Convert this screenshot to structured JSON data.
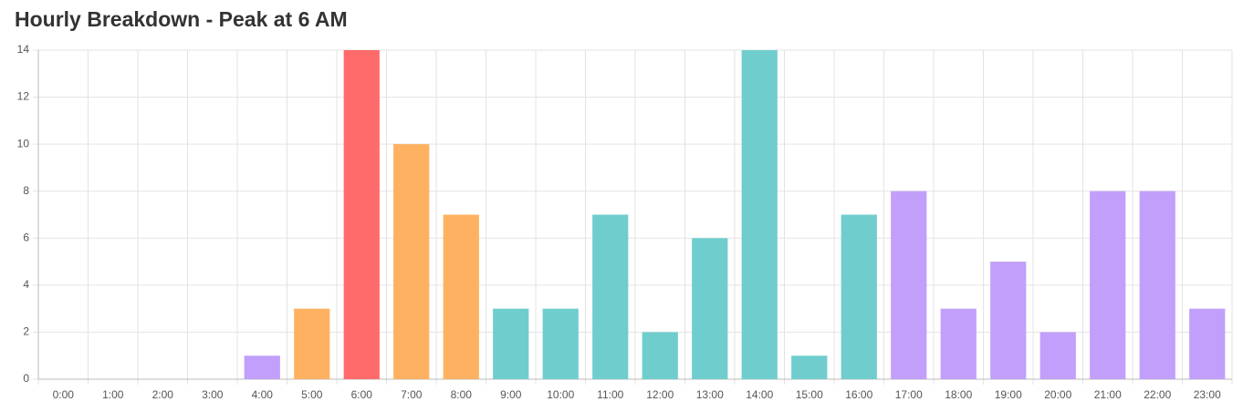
{
  "chart_data": {
    "type": "bar",
    "title": "Hourly Breakdown - Peak at 6 AM",
    "categories": [
      "0:00",
      "1:00",
      "2:00",
      "3:00",
      "4:00",
      "5:00",
      "6:00",
      "7:00",
      "8:00",
      "9:00",
      "10:00",
      "11:00",
      "12:00",
      "13:00",
      "14:00",
      "15:00",
      "16:00",
      "17:00",
      "18:00",
      "19:00",
      "20:00",
      "21:00",
      "22:00",
      "23:00"
    ],
    "values": [
      0,
      0,
      0,
      0,
      1,
      3,
      14,
      10,
      7,
      3,
      3,
      7,
      2,
      6,
      14,
      1,
      7,
      8,
      3,
      5,
      2,
      8,
      8,
      3
    ],
    "colors": [
      "#c29ffa",
      "#c29ffa",
      "#c29ffa",
      "#c29ffa",
      "#c29ffa",
      "#ffb162",
      "#ff6b6b",
      "#ffb162",
      "#ffb162",
      "#70cdcd",
      "#70cdcd",
      "#70cdcd",
      "#70cdcd",
      "#70cdcd",
      "#70cdcd",
      "#70cdcd",
      "#70cdcd",
      "#c29ffa",
      "#c29ffa",
      "#c29ffa",
      "#c29ffa",
      "#c29ffa",
      "#c29ffa",
      "#c29ffa"
    ],
    "ylim": [
      0,
      14
    ],
    "yticks": [
      0,
      2,
      4,
      6,
      8,
      10,
      12,
      14
    ],
    "grid": true
  }
}
